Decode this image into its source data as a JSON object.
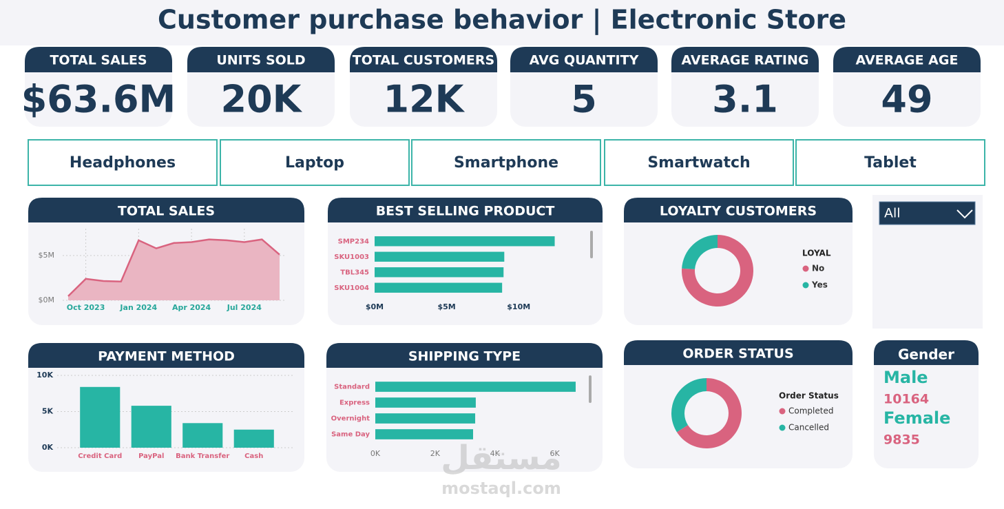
{
  "title": "Customer purchase behavior | Electronic Store",
  "kpis": [
    {
      "label": "TOTAL SALES",
      "value": "$63.6M"
    },
    {
      "label": "UNITS SOLD",
      "value": "20K"
    },
    {
      "label": "TOTAL CUSTOMERS",
      "value": "12K"
    },
    {
      "label": "AVG QUANTITY",
      "value": "5"
    },
    {
      "label": "AVERAGE RATING",
      "value": "3.1"
    },
    {
      "label": "AVERAGE AGE",
      "value": "49"
    }
  ],
  "product_filters": [
    "Headphones",
    "Laptop",
    "Smartphone",
    "Smartwatch",
    "Tablet"
  ],
  "dropdown": "All",
  "gender": {
    "title": "Gender",
    "items": [
      {
        "label": "Male",
        "value": 10164
      },
      {
        "label": "Female",
        "value": 9835
      }
    ]
  },
  "watermark": {
    "logo": "مستقل",
    "site": "mostaql.com"
  },
  "chart_data": [
    {
      "type": "area",
      "title": "TOTAL SALES",
      "categories": [
        null,
        "Oct 2023",
        null,
        null,
        "Jan 2024",
        null,
        null,
        "Apr 2024",
        null,
        null,
        "Jul 2024",
        null,
        null
      ],
      "values": [
        0.46,
        2.4,
        2.15,
        2.1,
        6.7,
        5.8,
        6.4,
        6.5,
        6.8,
        6.7,
        6.5,
        6.8,
        5.1
      ],
      "color": "#eab5c2",
      "line_color": "#d9637f",
      "ylim": [
        0,
        8
      ],
      "yticks": [
        {
          "value": 0,
          "label": "$0M"
        },
        {
          "value": 5,
          "label": "$5M"
        }
      ],
      "grid": true
    },
    {
      "type": "bar",
      "orientation": "horizontal",
      "title": "BEST SELLING PRODUCT",
      "categories": [
        "SMP234",
        "SKU1003",
        "TBL345",
        "SKU1004"
      ],
      "values": [
        12.5,
        9.0,
        8.95,
        8.85
      ],
      "color": "#27b5a4",
      "xlim": [
        0,
        13
      ],
      "xticks": [
        {
          "value": 0,
          "label": "$0M"
        },
        {
          "value": 5,
          "label": "$5M"
        },
        {
          "value": 10,
          "label": "$10M"
        }
      ],
      "grid": false
    },
    {
      "type": "donut",
      "title": "LOYALTY CUSTOMERS",
      "legend_title": "LOYAL",
      "categories": [
        "No",
        "Yes"
      ],
      "values": [
        76,
        24
      ],
      "colors": [
        "#d9637f",
        "#27b5a4"
      ]
    },
    {
      "type": "bar",
      "orientation": "vertical",
      "title": "PAYMENT METHOD",
      "categories": [
        "Credit Card",
        "PayPal",
        "Bank Transfer",
        "Cash"
      ],
      "values": [
        8400,
        5800,
        3400,
        2500
      ],
      "color": "#27b5a4",
      "ylim": [
        0,
        10000
      ],
      "yticks": [
        {
          "value": 0,
          "label": "0K"
        },
        {
          "value": 5000,
          "label": "5K"
        },
        {
          "value": 10000,
          "label": "10K"
        }
      ],
      "grid": true
    },
    {
      "type": "bar",
      "orientation": "horizontal",
      "title": "SHIPPING TYPE",
      "categories": [
        "Standard",
        "Express",
        "Overnight",
        "Same Day"
      ],
      "values": [
        6700,
        3360,
        3340,
        3270
      ],
      "color": "#27b5a4",
      "xlim": [
        0,
        7000
      ],
      "xticks": [
        {
          "value": 0,
          "label": "0K"
        },
        {
          "value": 2000,
          "label": "2K"
        },
        {
          "value": 4000,
          "label": "4K"
        },
        {
          "value": 6000,
          "label": "6K"
        }
      ],
      "grid": false
    },
    {
      "type": "donut",
      "title": "ORDER STATUS",
      "legend_title": "Order Status",
      "categories": [
        "Completed",
        "Cancelled"
      ],
      "values": [
        66,
        34
      ],
      "colors": [
        "#d9637f",
        "#27b5a4"
      ]
    }
  ]
}
